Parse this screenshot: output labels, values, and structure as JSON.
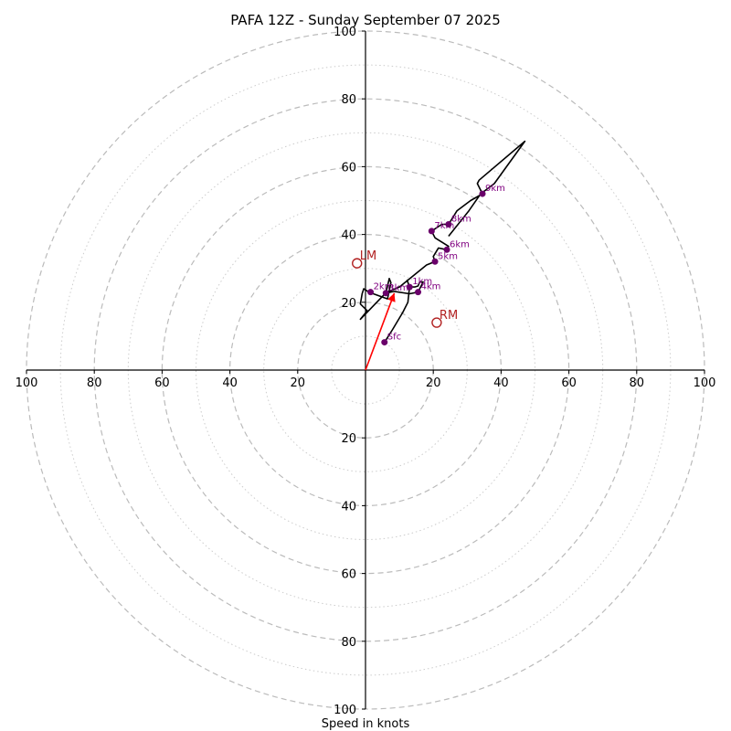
{
  "title": "PAFA 12Z - Sunday September 07 2025",
  "chart_data": {
    "type": "hodograph",
    "title": "PAFA 12Z - Sunday September 07 2025",
    "xlabel": "Speed in knots",
    "range": 100,
    "rings_major": [
      20,
      40,
      60,
      80,
      100
    ],
    "rings_minor": [
      10,
      30,
      50,
      70,
      90
    ],
    "tick_labels": [
      "100",
      "80",
      "60",
      "40",
      "20",
      "20",
      "40",
      "60",
      "80",
      "100"
    ],
    "tick_values": [
      -100,
      -80,
      -60,
      -40,
      -20,
      20,
      40,
      60,
      80,
      100
    ],
    "y_tick_labels": [
      "100",
      "80",
      "60",
      "40",
      "20",
      "20",
      "40",
      "60",
      "80",
      "100"
    ],
    "y_tick_values": [
      100,
      80,
      60,
      40,
      20,
      -20,
      -40,
      -60,
      -80,
      -100
    ],
    "trace": [
      [
        5.6,
        8.2
      ],
      [
        8,
        12
      ],
      [
        11,
        17
      ],
      [
        12.5,
        20
      ],
      [
        13,
        24.5
      ],
      [
        12.3,
        26.5
      ],
      [
        13,
        24.5
      ],
      [
        14.5,
        24.5
      ],
      [
        15.5,
        24.8
      ],
      [
        16,
        26
      ],
      [
        17,
        26
      ],
      [
        15.5,
        23
      ],
      [
        13,
        22.5
      ],
      [
        8.5,
        23.2
      ],
      [
        6,
        22.7
      ],
      [
        7,
        27
      ],
      [
        7.5,
        25.8
      ],
      [
        6.5,
        21
      ],
      [
        1,
        23
      ],
      [
        -0.5,
        24
      ],
      [
        -1,
        22.5
      ],
      [
        -1.5,
        19.5
      ],
      [
        0.5,
        17.5
      ],
      [
        -1.5,
        15
      ],
      [
        6,
        22.8
      ],
      [
        10,
        24.5
      ],
      [
        18,
        31
      ],
      [
        20.5,
        32
      ],
      [
        20,
        33.5
      ],
      [
        21.5,
        36
      ],
      [
        24,
        35.5
      ],
      [
        24.5,
        36.5
      ],
      [
        20.5,
        39
      ],
      [
        19.5,
        41
      ],
      [
        22.5,
        43
      ],
      [
        24.5,
        43
      ],
      [
        27,
        47
      ],
      [
        31,
        50
      ],
      [
        34.5,
        52
      ],
      [
        33,
        55
      ],
      [
        33.5,
        56
      ],
      [
        47,
        67.5
      ],
      [
        38,
        55
      ],
      [
        34,
        52
      ],
      [
        30.5,
        47
      ],
      [
        24.5,
        39.5
      ]
    ],
    "levels": [
      {
        "label": "Sfc",
        "u": 5.6,
        "v": 8.2
      },
      {
        "label": "1km",
        "u": 13,
        "v": 24.5
      },
      {
        "label": "2km",
        "u": 1.5,
        "v": 23
      },
      {
        "label": "3km",
        "u": 6,
        "v": 22.7
      },
      {
        "label": "4km",
        "u": 15.5,
        "v": 23
      },
      {
        "label": "5km",
        "u": 20.5,
        "v": 32
      },
      {
        "label": "6km",
        "u": 24,
        "v": 35.5
      },
      {
        "label": "7km",
        "u": 19.5,
        "v": 41
      },
      {
        "label": "8km",
        "u": 24.5,
        "v": 43
      },
      {
        "label": "9km",
        "u": 34.5,
        "v": 52
      }
    ],
    "mean_wind_arrow": {
      "u": 8.5,
      "v": 22.7,
      "color": "#ff0000"
    },
    "storm_motion": [
      {
        "label": "LM",
        "u": -2.5,
        "v": 31.5,
        "color": "#b22222"
      },
      {
        "label": "RM",
        "u": 21,
        "v": 14,
        "color": "#b22222"
      }
    ],
    "colors": {
      "trace": "#000000",
      "levels": "#6a006a",
      "level_labels": "#800080",
      "grid_major": "#bbbbbb",
      "grid_minor": "#cccccc"
    }
  }
}
